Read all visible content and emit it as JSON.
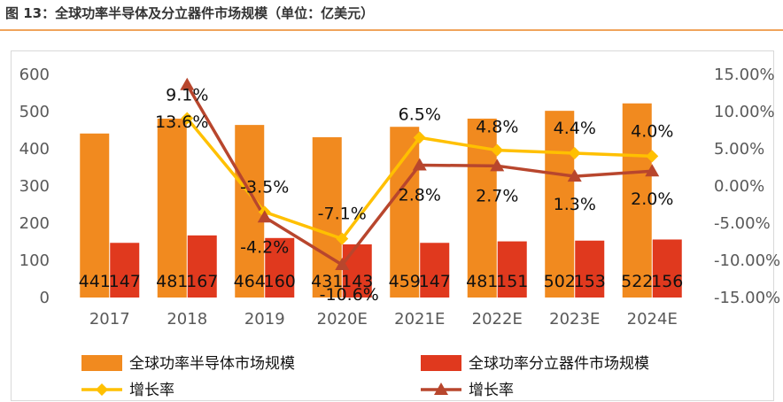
{
  "figure_title": "图 13：全球功率半导体及分立器件市场规模（单位：亿美元）",
  "colors": {
    "accent_rule": "#f0a45c",
    "bar_semiconductor": "#f18a1f",
    "bar_discrete": "#e0391e",
    "line_semiconductor": "#ffc000",
    "line_discrete": "#b8462d"
  },
  "chart_data": {
    "type": "bar",
    "categories": [
      "2017",
      "2018",
      "2019",
      "2020E",
      "2021E",
      "2022E",
      "2023E",
      "2024E"
    ],
    "series": [
      {
        "name": "全球功率半导体市场规模",
        "kind": "bar",
        "axis": "left",
        "values": [
          441,
          481,
          464,
          431,
          459,
          481,
          502,
          522
        ],
        "labels": [
          "441",
          "481",
          "464",
          "431",
          "459",
          "481",
          "502",
          "522"
        ]
      },
      {
        "name": "全球功率分立器件市场规模",
        "kind": "bar",
        "axis": "left",
        "values": [
          147,
          167,
          160,
          143,
          147,
          151,
          153,
          156
        ],
        "labels": [
          "147",
          "167",
          "160",
          "143",
          "147",
          "151",
          "153",
          "156"
        ]
      },
      {
        "name": "增长率",
        "kind": "line",
        "axis": "right",
        "marker": "diamond",
        "values": [
          null,
          9.1,
          -3.5,
          -7.1,
          6.5,
          4.8,
          4.4,
          4.0
        ],
        "labels": [
          "",
          "9.1%",
          "-3.5%",
          "-7.1%",
          "6.5%",
          "4.8%",
          "4.4%",
          "4.0%"
        ]
      },
      {
        "name": "增长率",
        "kind": "line",
        "axis": "right",
        "marker": "triangle",
        "values": [
          null,
          13.6,
          -4.2,
          -10.6,
          2.8,
          2.7,
          1.3,
          2.0
        ],
        "labels": [
          "",
          "13.6%",
          "-4.2%",
          "-10.6%",
          "2.8%",
          "2.7%",
          "1.3%",
          "2.0%"
        ]
      }
    ],
    "y_left": {
      "min": 0,
      "max": 600,
      "ticks": [
        "0",
        "100",
        "200",
        "300",
        "400",
        "500",
        "600"
      ]
    },
    "y_right": {
      "min": -15,
      "max": 15,
      "ticks": [
        "-15.00%",
        "-10.00%",
        "-5.00%",
        "0.00%",
        "5.00%",
        "10.00%",
        "15.00%"
      ]
    },
    "grid": false,
    "legend_position": "bottom"
  }
}
